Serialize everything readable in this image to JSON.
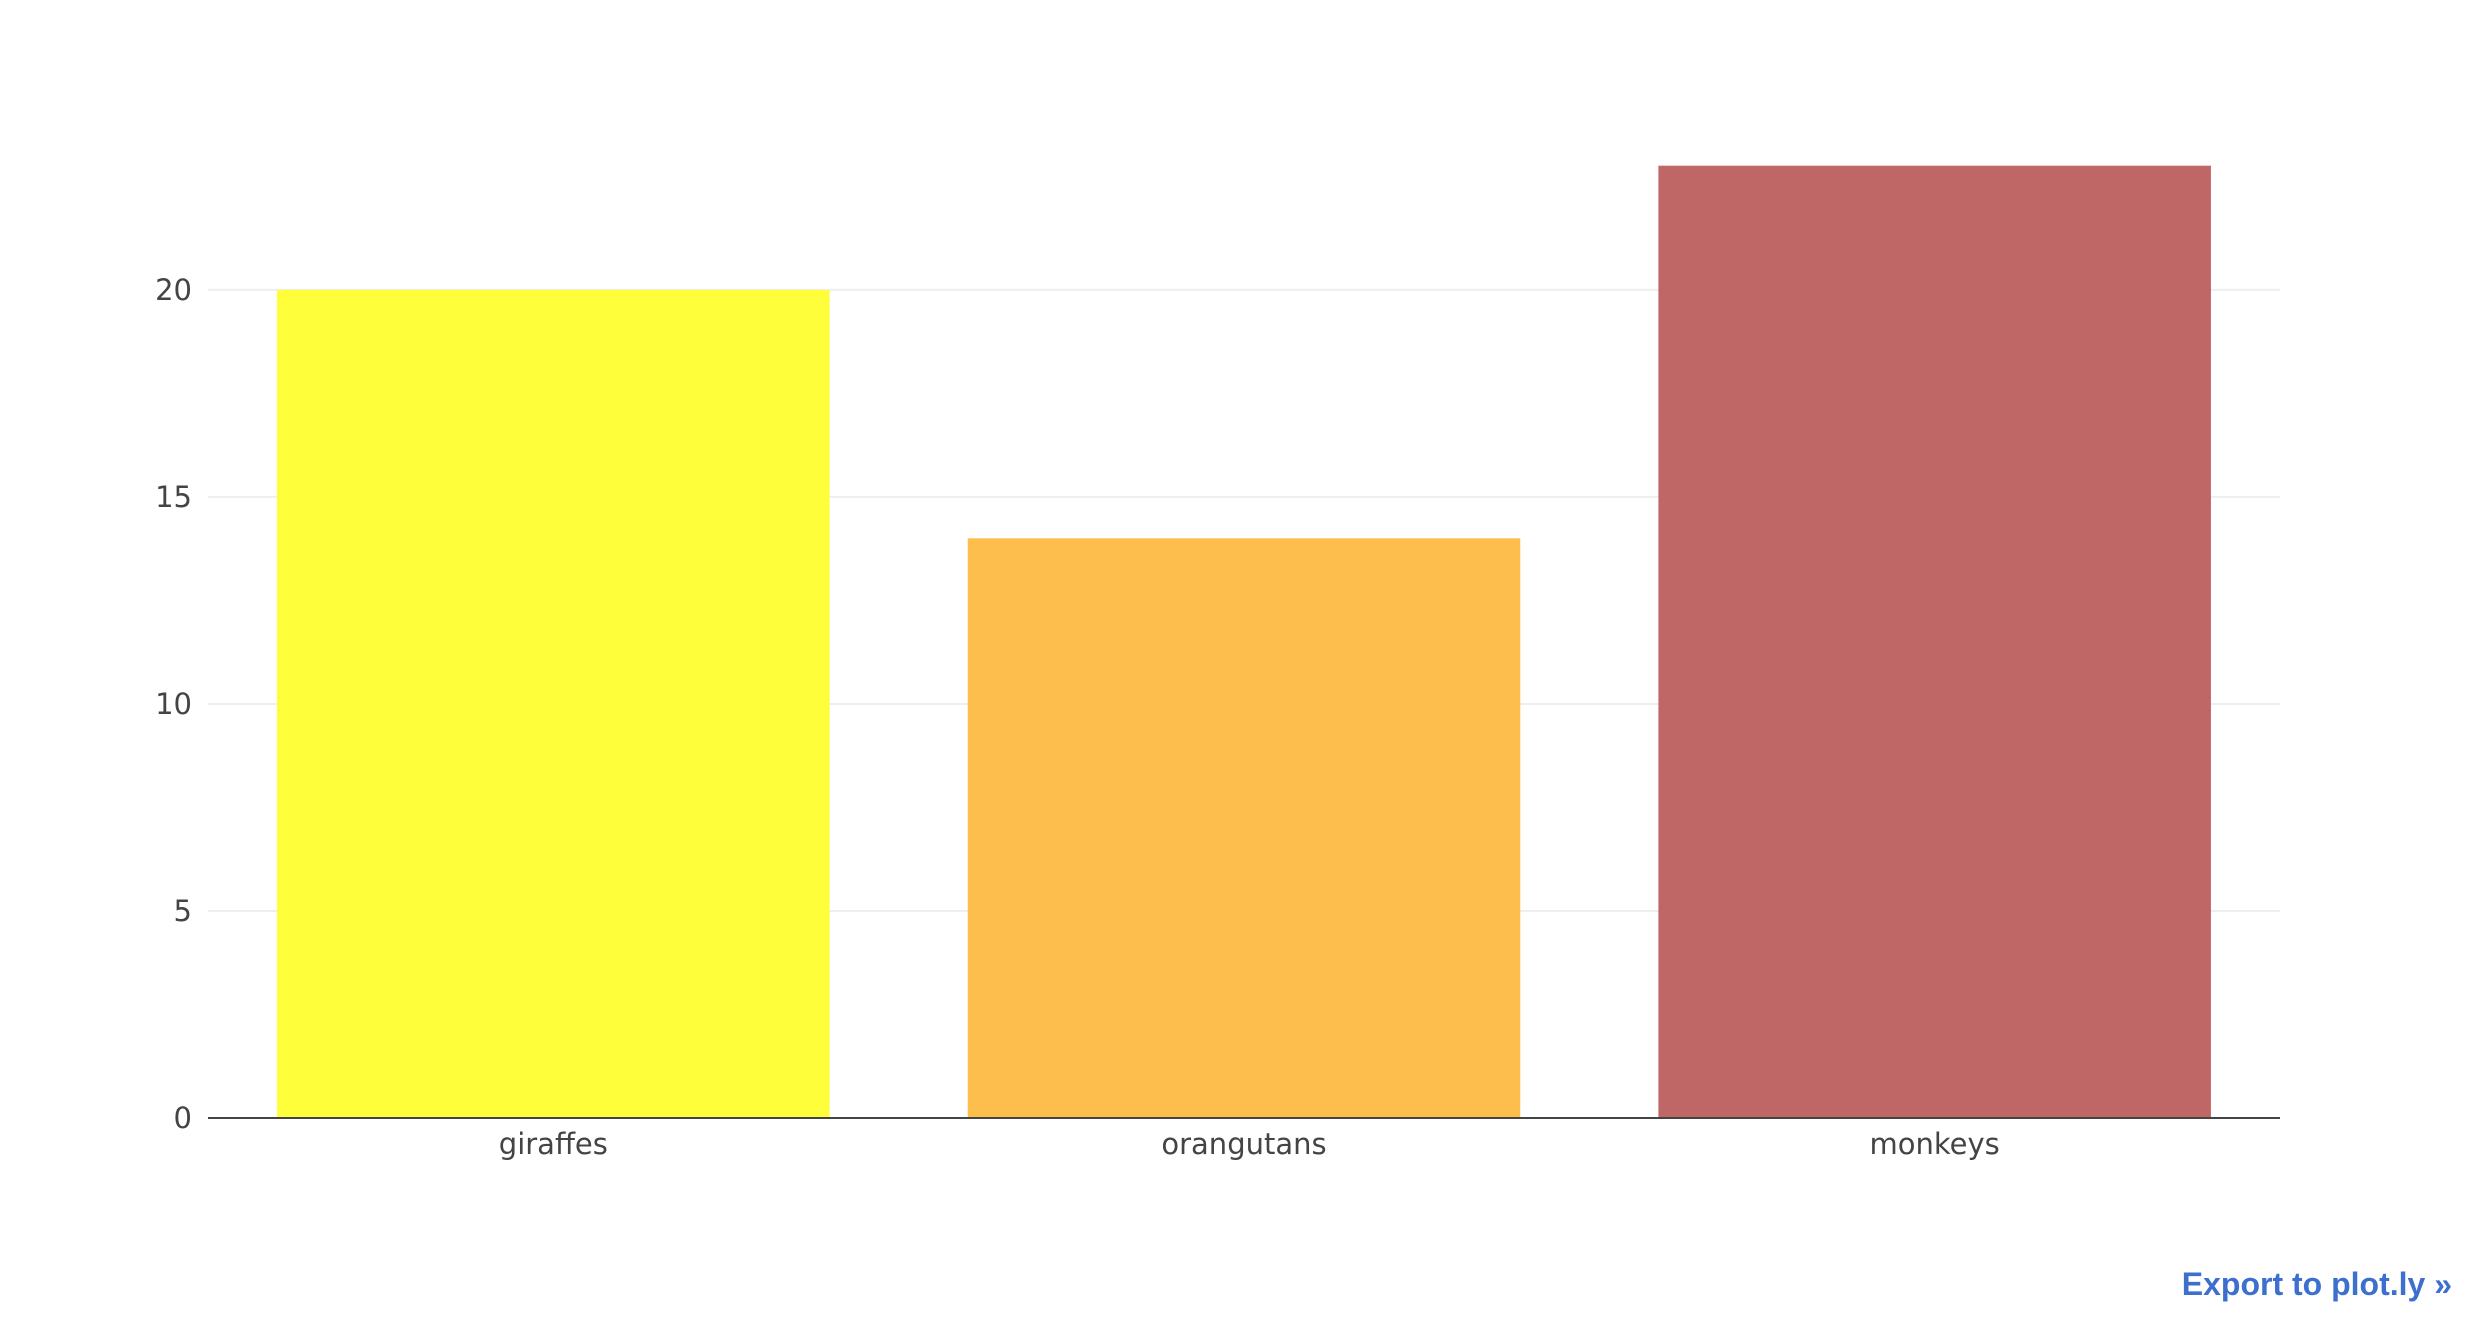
{
  "chart_data": {
    "type": "bar",
    "title": "",
    "xlabel": "",
    "ylabel": "",
    "categories": [
      "giraffes",
      "orangutans",
      "monkeys"
    ],
    "values": [
      20,
      14,
      23
    ],
    "colors": [
      "#fffe3a",
      "#febe4b",
      "#bf6766"
    ],
    "ylim": [
      0,
      24.2
    ],
    "yticks": [
      0,
      5,
      10,
      15,
      20
    ],
    "grid": true,
    "legend": false
  },
  "export_link": {
    "label": "Export to plot.ly »"
  },
  "colors": {
    "grid": "#eeeeee",
    "axis": "#444444",
    "link": "#3d6fcf"
  }
}
